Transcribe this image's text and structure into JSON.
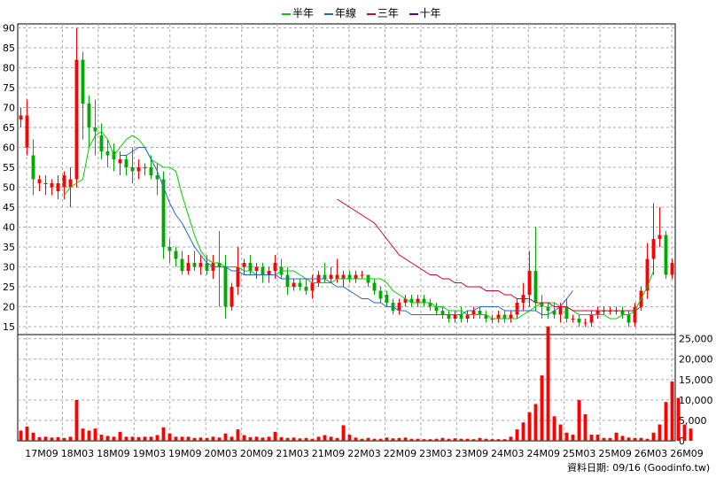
{
  "legend": [
    {
      "label": "半年",
      "color": "#00cc00"
    },
    {
      "label": "年線",
      "color": "#2266cc"
    },
    {
      "label": "三年",
      "color": "#cc0033"
    },
    {
      "label": "十年",
      "color": "#660099"
    }
  ],
  "footer": "資料日期: 09/16 (Goodinfo.tw)",
  "colors": {
    "up": "#ff0000",
    "down": "#00aa00",
    "volume": "#ff0000",
    "grid": "#aaaaaa"
  },
  "chart_data": [
    {
      "type": "candlestick",
      "title": "",
      "ylim": [
        13,
        91
      ],
      "y_ticks": [
        15,
        20,
        25,
        30,
        35,
        40,
        45,
        50,
        55,
        60,
        65,
        70,
        75,
        80,
        85,
        90
      ],
      "x_ticks": [
        "17M09",
        "18M03",
        "18M09",
        "19M03",
        "19M09",
        "20M03",
        "20M09",
        "21M03",
        "21M09",
        "22M03",
        "22M09",
        "23M03",
        "23M09",
        "24M03",
        "24M09",
        "25M03",
        "25M09",
        "26M03",
        "26M09"
      ],
      "grid": true,
      "candles": [
        {
          "o": 67,
          "h": 70,
          "l": 65,
          "c": 68
        },
        {
          "o": 60,
          "h": 72,
          "l": 58,
          "c": 68
        },
        {
          "o": 58,
          "h": 62,
          "l": 48,
          "c": 52
        },
        {
          "o": 51,
          "h": 53,
          "l": 49,
          "c": 52
        },
        {
          "o": 51,
          "h": 53,
          "l": 48,
          "c": 51
        },
        {
          "o": 50,
          "h": 52,
          "l": 48,
          "c": 51
        },
        {
          "o": 49,
          "h": 53,
          "l": 47,
          "c": 51
        },
        {
          "o": 50,
          "h": 54,
          "l": 47,
          "c": 53
        },
        {
          "o": 50,
          "h": 55,
          "l": 45,
          "c": 52
        },
        {
          "o": 52,
          "h": 90,
          "l": 50,
          "c": 82
        },
        {
          "o": 82,
          "h": 84,
          "l": 62,
          "c": 71
        },
        {
          "o": 71,
          "h": 73,
          "l": 60,
          "c": 65
        },
        {
          "o": 65,
          "h": 72,
          "l": 58,
          "c": 64
        },
        {
          "o": 63,
          "h": 66,
          "l": 57,
          "c": 59
        },
        {
          "o": 59,
          "h": 62,
          "l": 55,
          "c": 58
        },
        {
          "o": 59,
          "h": 61,
          "l": 54,
          "c": 57
        },
        {
          "o": 56,
          "h": 59,
          "l": 53,
          "c": 57
        },
        {
          "o": 57,
          "h": 58,
          "l": 53,
          "c": 55
        },
        {
          "o": 55,
          "h": 60,
          "l": 51,
          "c": 54
        },
        {
          "o": 54,
          "h": 57,
          "l": 52,
          "c": 55
        },
        {
          "o": 55,
          "h": 56,
          "l": 53,
          "c": 55
        },
        {
          "o": 55,
          "h": 58,
          "l": 52,
          "c": 53
        },
        {
          "o": 53,
          "h": 56,
          "l": 48,
          "c": 52
        },
        {
          "o": 52,
          "h": 54,
          "l": 32,
          "c": 35
        },
        {
          "o": 35,
          "h": 37,
          "l": 31,
          "c": 34
        },
        {
          "o": 34,
          "h": 35,
          "l": 30,
          "c": 32
        },
        {
          "o": 32,
          "h": 34,
          "l": 28,
          "c": 29
        },
        {
          "o": 29,
          "h": 33,
          "l": 28,
          "c": 31
        },
        {
          "o": 31,
          "h": 34,
          "l": 29,
          "c": 30
        },
        {
          "o": 30,
          "h": 33,
          "l": 28,
          "c": 31
        },
        {
          "o": 31,
          "h": 33,
          "l": 28,
          "c": 29
        },
        {
          "o": 29,
          "h": 33,
          "l": 27,
          "c": 31
        },
        {
          "o": 31,
          "h": 39,
          "l": 20,
          "c": 30
        },
        {
          "o": 30,
          "h": 33,
          "l": 17,
          "c": 20
        },
        {
          "o": 20,
          "h": 26,
          "l": 19,
          "c": 25
        },
        {
          "o": 25,
          "h": 35,
          "l": 23,
          "c": 30
        },
        {
          "o": 30,
          "h": 32,
          "l": 28,
          "c": 31
        },
        {
          "o": 31,
          "h": 33,
          "l": 28,
          "c": 29
        },
        {
          "o": 29,
          "h": 31,
          "l": 27,
          "c": 30
        },
        {
          "o": 30,
          "h": 31,
          "l": 26,
          "c": 28
        },
        {
          "o": 28,
          "h": 30,
          "l": 26,
          "c": 29
        },
        {
          "o": 29,
          "h": 33,
          "l": 27,
          "c": 31
        },
        {
          "o": 30,
          "h": 32,
          "l": 27,
          "c": 28
        },
        {
          "o": 28,
          "h": 30,
          "l": 23,
          "c": 25
        },
        {
          "o": 25,
          "h": 27,
          "l": 24,
          "c": 26
        },
        {
          "o": 26,
          "h": 27,
          "l": 24,
          "c": 25
        },
        {
          "o": 25,
          "h": 27,
          "l": 23,
          "c": 24
        },
        {
          "o": 24,
          "h": 28,
          "l": 22,
          "c": 26
        },
        {
          "o": 26,
          "h": 29,
          "l": 25,
          "c": 28
        },
        {
          "o": 28,
          "h": 31,
          "l": 26,
          "c": 27
        },
        {
          "o": 27,
          "h": 30,
          "l": 26,
          "c": 28
        },
        {
          "o": 27,
          "h": 32,
          "l": 26,
          "c": 28
        },
        {
          "o": 27,
          "h": 29,
          "l": 25,
          "c": 28
        },
        {
          "o": 28,
          "h": 29,
          "l": 26,
          "c": 27
        },
        {
          "o": 27,
          "h": 29,
          "l": 26,
          "c": 28
        },
        {
          "o": 28,
          "h": 29,
          "l": 27,
          "c": 28
        },
        {
          "o": 28,
          "h": 28,
          "l": 25,
          "c": 26
        },
        {
          "o": 26,
          "h": 27,
          "l": 23,
          "c": 24
        },
        {
          "o": 24,
          "h": 25,
          "l": 21,
          "c": 22
        },
        {
          "o": 23,
          "h": 24,
          "l": 20,
          "c": 21
        },
        {
          "o": 21,
          "h": 22,
          "l": 18,
          "c": 19
        },
        {
          "o": 19,
          "h": 22,
          "l": 18,
          "c": 21
        },
        {
          "o": 21,
          "h": 23,
          "l": 20,
          "c": 22
        },
        {
          "o": 22,
          "h": 23,
          "l": 20,
          "c": 21
        },
        {
          "o": 21,
          "h": 23,
          "l": 20,
          "c": 22
        },
        {
          "o": 22,
          "h": 23,
          "l": 20,
          "c": 21
        },
        {
          "o": 21,
          "h": 22,
          "l": 19,
          "c": 20
        },
        {
          "o": 20,
          "h": 21,
          "l": 18,
          "c": 19
        },
        {
          "o": 19,
          "h": 20,
          "l": 17,
          "c": 18
        },
        {
          "o": 18,
          "h": 19,
          "l": 16,
          "c": 17
        },
        {
          "o": 17,
          "h": 19,
          "l": 16,
          "c": 18
        },
        {
          "o": 18,
          "h": 20,
          "l": 16,
          "c": 17
        },
        {
          "o": 17,
          "h": 19,
          "l": 16,
          "c": 18
        },
        {
          "o": 18,
          "h": 20,
          "l": 17,
          "c": 19
        },
        {
          "o": 19,
          "h": 20,
          "l": 17,
          "c": 18
        },
        {
          "o": 18,
          "h": 19,
          "l": 16,
          "c": 17
        },
        {
          "o": 17,
          "h": 18,
          "l": 16,
          "c": 17
        },
        {
          "o": 17,
          "h": 19,
          "l": 16,
          "c": 18
        },
        {
          "o": 18,
          "h": 19,
          "l": 16,
          "c": 17
        },
        {
          "o": 17,
          "h": 19,
          "l": 16,
          "c": 18
        },
        {
          "o": 18,
          "h": 22,
          "l": 17,
          "c": 21
        },
        {
          "o": 21,
          "h": 26,
          "l": 19,
          "c": 23
        },
        {
          "o": 23,
          "h": 34,
          "l": 20,
          "c": 29
        },
        {
          "o": 29,
          "h": 40,
          "l": 19,
          "c": 21
        },
        {
          "o": 21,
          "h": 23,
          "l": 17,
          "c": 20
        },
        {
          "o": 20,
          "h": 21,
          "l": 17,
          "c": 19
        },
        {
          "o": 19,
          "h": 21,
          "l": 17,
          "c": 18
        },
        {
          "o": 18,
          "h": 21,
          "l": 16,
          "c": 20
        },
        {
          "o": 20,
          "h": 22,
          "l": 16,
          "c": 17
        },
        {
          "o": 17,
          "h": 18,
          "l": 16,
          "c": 17
        },
        {
          "o": 17,
          "h": 18,
          "l": 15,
          "c": 16
        },
        {
          "o": 16,
          "h": 17,
          "l": 15,
          "c": 16
        },
        {
          "o": 16,
          "h": 19,
          "l": 15,
          "c": 18
        },
        {
          "o": 18,
          "h": 20,
          "l": 17,
          "c": 19
        },
        {
          "o": 19,
          "h": 20,
          "l": 18,
          "c": 19
        },
        {
          "o": 19,
          "h": 20,
          "l": 18,
          "c": 19
        },
        {
          "o": 19,
          "h": 20,
          "l": 18,
          "c": 19
        },
        {
          "o": 19,
          "h": 20,
          "l": 17,
          "c": 18
        },
        {
          "o": 18,
          "h": 19,
          "l": 15,
          "c": 16
        },
        {
          "o": 16,
          "h": 21,
          "l": 15,
          "c": 20
        },
        {
          "o": 20,
          "h": 25,
          "l": 19,
          "c": 24
        },
        {
          "o": 24,
          "h": 36,
          "l": 22,
          "c": 32
        },
        {
          "o": 32,
          "h": 46,
          "l": 28,
          "c": 37
        },
        {
          "o": 37,
          "h": 45,
          "l": 35,
          "c": 38
        },
        {
          "o": 38,
          "h": 39,
          "l": 27,
          "c": 28
        },
        {
          "o": 28,
          "h": 32,
          "l": 27,
          "c": 31
        }
      ],
      "series": [
        {
          "name": "半年",
          "color": "#00cc00",
          "start": 7,
          "values": [
            48,
            50,
            51,
            52,
            60,
            63,
            64,
            62,
            58,
            60,
            62,
            63,
            62,
            60,
            57,
            56,
            55,
            55,
            54,
            48,
            43,
            38,
            34,
            32,
            31,
            31,
            30,
            30,
            30,
            29,
            29,
            28,
            28,
            28,
            28,
            29,
            29,
            29,
            28,
            27,
            26,
            26,
            26,
            26,
            27,
            27,
            27,
            27,
            27,
            27,
            27,
            27,
            26,
            24,
            23,
            22,
            21,
            21,
            21,
            21,
            20,
            20,
            19,
            19,
            19,
            18,
            18,
            18,
            18,
            17,
            17,
            17,
            17,
            17,
            18,
            19,
            20,
            21,
            21,
            21,
            20,
            20,
            19,
            18,
            18,
            18,
            18,
            18,
            17,
            17,
            18,
            18,
            19,
            22,
            25,
            29
          ]
        },
        {
          "name": "年線",
          "color": "#2266cc",
          "start": 16,
          "values": [
            58,
            58,
            59,
            60,
            60,
            57,
            54,
            50,
            46,
            43,
            41,
            38,
            35,
            33,
            31,
            30,
            30,
            30,
            29,
            29,
            28,
            28,
            28,
            28,
            28,
            28,
            27,
            27,
            27,
            27,
            27,
            27,
            27,
            27,
            26,
            25,
            25,
            24,
            23,
            22,
            22,
            21,
            21,
            20,
            20,
            19,
            19,
            18,
            18,
            18,
            18,
            18,
            18,
            18,
            18,
            18,
            19,
            19,
            20,
            20,
            20,
            20,
            19,
            19,
            19,
            19,
            19,
            19,
            18,
            18,
            19,
            20,
            22,
            24
          ]
        },
        {
          "name": "三年",
          "color": "#cc0033",
          "start": 51,
          "values": [
            47,
            46,
            45,
            44,
            43,
            42,
            41,
            39,
            37,
            35,
            33,
            32,
            31,
            30,
            29,
            28,
            28,
            27,
            27,
            26,
            26,
            25,
            25,
            25,
            24,
            24,
            24,
            23,
            23,
            22,
            22,
            22,
            21,
            21,
            21,
            20,
            20,
            20,
            19,
            19,
            19,
            19,
            19,
            19,
            19,
            19,
            19,
            19,
            19,
            20
          ]
        },
        {
          "name": "十年",
          "color": "#660099",
          "start": 0,
          "values": []
        }
      ]
    },
    {
      "type": "bar",
      "ylim": [
        0,
        26000
      ],
      "y_ticks": [
        0,
        5000,
        10000,
        15000,
        20000,
        25000
      ],
      "y_tick_labels": [
        "0",
        "5,000",
        "10,000",
        "15,000",
        "20,000",
        "25,000"
      ],
      "values": [
        2500,
        3500,
        2000,
        900,
        1000,
        800,
        900,
        700,
        1000,
        10000,
        3000,
        2500,
        3000,
        1500,
        1200,
        1000,
        2200,
        1000,
        1000,
        900,
        1000,
        1000,
        1400,
        3300,
        1800,
        1000,
        1000,
        1000,
        700,
        800,
        700,
        1000,
        800,
        1800,
        1000,
        2800,
        1400,
        900,
        1000,
        800,
        1000,
        2200,
        900,
        700,
        800,
        600,
        700,
        500,
        1000,
        1400,
        1000,
        700,
        3800,
        1500,
        800,
        500,
        700,
        500,
        500,
        800,
        600,
        700,
        800,
        500,
        500,
        400,
        400,
        500,
        700,
        500,
        600,
        500,
        500,
        400,
        700,
        500,
        400,
        400,
        400,
        1000,
        2800,
        4500,
        7000,
        9000,
        16000,
        28000,
        6000,
        4000,
        2000,
        1500,
        10000,
        6500,
        1500,
        1500,
        700,
        700,
        2000,
        1200,
        800,
        700,
        700,
        500,
        2000,
        4000,
        9500,
        14500,
        10500,
        4000,
        3000
      ]
    }
  ]
}
